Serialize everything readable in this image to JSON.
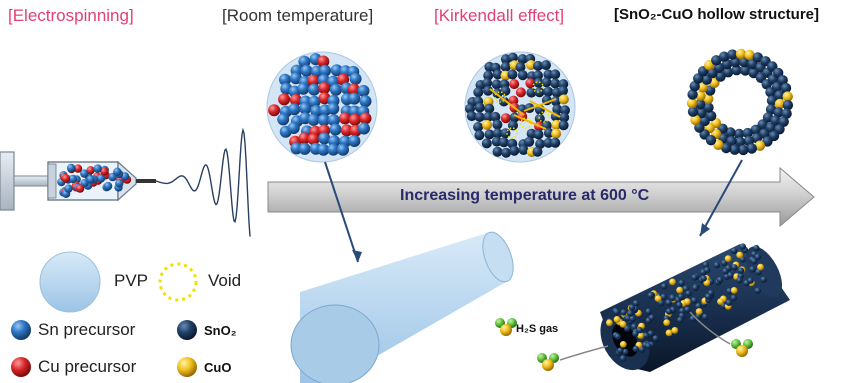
{
  "steps": [
    {
      "label": "[Electrospinning]",
      "color": "#e0407a"
    },
    {
      "label": "[Room temperature]",
      "color": "#333333"
    },
    {
      "label": "[Kirkendall effect]",
      "color": "#e0407a"
    },
    {
      "label": "[SnO₂-CuO hollow structure]",
      "color": "#111111"
    }
  ],
  "arrow": {
    "label": "Increasing temperature at 600 °C"
  },
  "legend": {
    "pvp": "PVP",
    "void": "Void",
    "sn_precursor": "Sn precursor",
    "sno2": "SnO₂",
    "cu_precursor": "Cu precursor",
    "cuo": "CuO"
  },
  "gas_label": "H₂S gas",
  "colors": {
    "sn_precursor": "#2e78c8",
    "sno2": "#1f3f66",
    "cu_precursor": "#d8262a",
    "cuo": "#f0c020",
    "pvp": "#b8d6ee",
    "void": "#f2e000",
    "h2s_h": "#5bbf3a",
    "h2s_s": "#e8d440"
  }
}
